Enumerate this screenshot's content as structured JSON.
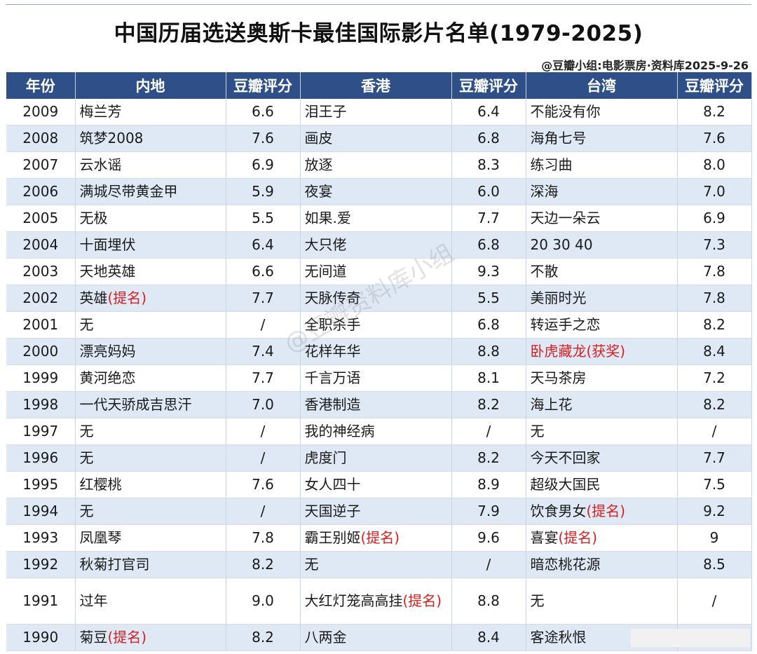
{
  "title": "中国历届选送奥斯卡最佳国际影片名单(1979-2025)",
  "source": "@豆瓣小组:电影票房·资料库2025-9-26",
  "watermark": "@豆瓣资料库小组",
  "headers": [
    "年份",
    "内地",
    "豆瓣评分",
    "香港",
    "豆瓣评分",
    "台湾",
    "豆瓣评分"
  ],
  "colors": {
    "header_bg": "#2e4f88",
    "stripe": "#dfe9f6",
    "highlight": "#d62020"
  },
  "rows": [
    {
      "year": "2009",
      "ml": "梅兰芳",
      "ml_nom": "",
      "ml_s": "6.6",
      "hk": "泪王子",
      "hk_nom": "",
      "hk_s": "6.4",
      "tw": "不能没有你",
      "tw_nom": "",
      "tw_s": "8.2"
    },
    {
      "year": "2008",
      "ml": "筑梦2008",
      "ml_nom": "",
      "ml_s": "7.6",
      "hk": "画皮",
      "hk_nom": "",
      "hk_s": "6.8",
      "tw": "海角七号",
      "tw_nom": "",
      "tw_s": "7.6"
    },
    {
      "year": "2007",
      "ml": "云水谣",
      "ml_nom": "",
      "ml_s": "6.9",
      "hk": "放逐",
      "hk_nom": "",
      "hk_s": "8.3",
      "tw": "练习曲",
      "tw_nom": "",
      "tw_s": "8.0"
    },
    {
      "year": "2006",
      "ml": "满城尽带黄金甲",
      "ml_nom": "",
      "ml_s": "5.9",
      "hk": "夜宴",
      "hk_nom": "",
      "hk_s": "6.0",
      "tw": "深海",
      "tw_nom": "",
      "tw_s": "7.0"
    },
    {
      "year": "2005",
      "ml": "无极",
      "ml_nom": "",
      "ml_s": "5.5",
      "hk": "如果.爱",
      "hk_nom": "",
      "hk_s": "7.7",
      "tw": "天边一朵云",
      "tw_nom": "",
      "tw_s": "6.9"
    },
    {
      "year": "2004",
      "ml": "十面埋伏",
      "ml_nom": "",
      "ml_s": "6.4",
      "hk": "大只佬",
      "hk_nom": "",
      "hk_s": "6.8",
      "tw": "20 30 40",
      "tw_nom": "",
      "tw_s": "7.3"
    },
    {
      "year": "2003",
      "ml": "天地英雄",
      "ml_nom": "",
      "ml_s": "6.6",
      "hk": "无间道",
      "hk_nom": "",
      "hk_s": "9.3",
      "tw": "不散",
      "tw_nom": "",
      "tw_s": "7.8"
    },
    {
      "year": "2002",
      "ml": "英雄",
      "ml_nom": "(提名)",
      "ml_s": "7.7",
      "hk": "天脉传奇",
      "hk_nom": "",
      "hk_s": "5.5",
      "tw": "美丽时光",
      "tw_nom": "",
      "tw_s": "7.8"
    },
    {
      "year": "2001",
      "ml": "无",
      "ml_nom": "",
      "ml_s": "/",
      "hk": "全职杀手",
      "hk_nom": "",
      "hk_s": "6.8",
      "tw": "转运手之恋",
      "tw_nom": "",
      "tw_s": "8.2"
    },
    {
      "year": "2000",
      "ml": "漂亮妈妈",
      "ml_nom": "",
      "ml_s": "7.4",
      "hk": "花样年华",
      "hk_nom": "",
      "hk_s": "8.8",
      "tw": "",
      "tw_nom": "卧虎藏龙(获奖)",
      "tw_s": "8.4"
    },
    {
      "year": "1999",
      "ml": "黄河绝恋",
      "ml_nom": "",
      "ml_s": "7.7",
      "hk": "千言万语",
      "hk_nom": "",
      "hk_s": "8.1",
      "tw": "天马茶房",
      "tw_nom": "",
      "tw_s": "7.2"
    },
    {
      "year": "1998",
      "ml": "一代天骄成吉思汗",
      "ml_nom": "",
      "ml_s": "7.0",
      "hk": "香港制造",
      "hk_nom": "",
      "hk_s": "8.2",
      "tw": "海上花",
      "tw_nom": "",
      "tw_s": "8.2"
    },
    {
      "year": "1997",
      "ml": "无",
      "ml_nom": "",
      "ml_s": "/",
      "hk": "我的神经病",
      "hk_nom": "",
      "hk_s": "/",
      "tw": "无",
      "tw_nom": "",
      "tw_s": "/"
    },
    {
      "year": "1996",
      "ml": "无",
      "ml_nom": "",
      "ml_s": "/",
      "hk": "虎度门",
      "hk_nom": "",
      "hk_s": "8.2",
      "tw": "今天不回家",
      "tw_nom": "",
      "tw_s": "7.7"
    },
    {
      "year": "1995",
      "ml": "红樱桃",
      "ml_nom": "",
      "ml_s": "7.6",
      "hk": "女人四十",
      "hk_nom": "",
      "hk_s": "8.9",
      "tw": "超级大国民",
      "tw_nom": "",
      "tw_s": "7.5"
    },
    {
      "year": "1994",
      "ml": "无",
      "ml_nom": "",
      "ml_s": "/",
      "hk": "天国逆子",
      "hk_nom": "",
      "hk_s": "7.9",
      "tw": "饮食男女",
      "tw_nom": "(提名)",
      "tw_s": "9.2"
    },
    {
      "year": "1993",
      "ml": "凤凰琴",
      "ml_nom": "",
      "ml_s": "7.8",
      "hk": "霸王别姬",
      "hk_nom": "(提名)",
      "hk_s": "9.6",
      "tw": "喜宴",
      "tw_nom": "(提名)",
      "tw_s": "9"
    },
    {
      "year": "1992",
      "ml": "秋菊打官司",
      "ml_nom": "",
      "ml_s": "8.2",
      "hk": "无",
      "hk_nom": "",
      "hk_s": "/",
      "tw": "暗恋桃花源",
      "tw_nom": "",
      "tw_s": "8.5"
    },
    {
      "year": "1991",
      "ml": "过年",
      "ml_nom": "",
      "ml_s": "9.0",
      "hk": "大红灯笼高高挂",
      "hk_nom": "(提名)",
      "hk_s": "8.8",
      "tw": "无",
      "tw_nom": "",
      "tw_s": "/"
    },
    {
      "year": "1990",
      "ml": "菊豆",
      "ml_nom": "(提名)",
      "ml_s": "8.2",
      "hk": "八两金",
      "hk_nom": "",
      "hk_s": "8.4",
      "tw": "客途秋恨",
      "tw_nom": "",
      "tw_s": ""
    }
  ]
}
